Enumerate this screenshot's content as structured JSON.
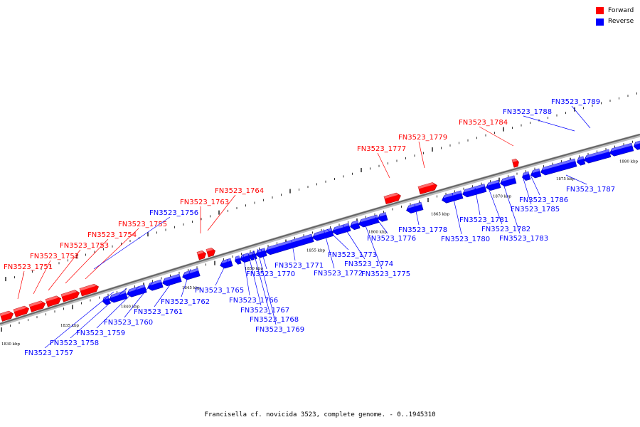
{
  "legend": {
    "forward_label": "Forward",
    "reverse_label": "Reverse",
    "forward_color": "#ff0000",
    "reverse_color": "#0000ff"
  },
  "caption": "Francisella cf. novicida 3523, complete genome. - 0..1945310",
  "scale_labels": [
    "1830 kbp",
    "1835 kbp",
    "1840 kbp",
    "1845 kbp",
    "1850 kbp",
    "1855 kbp",
    "1860 kbp",
    "1865 kbp",
    "1870 kbp",
    "1875 kbp",
    "1880 kbp"
  ],
  "genes": [
    {
      "id": "FN3523_1751",
      "strand": "forward"
    },
    {
      "id": "FN3523_1752",
      "strand": "forward"
    },
    {
      "id": "FN3523_1753",
      "strand": "forward"
    },
    {
      "id": "FN3523_1754",
      "strand": "forward"
    },
    {
      "id": "FN3523_1755",
      "strand": "forward"
    },
    {
      "id": "FN3523_1756",
      "strand": "reverse"
    },
    {
      "id": "FN3523_1757",
      "strand": "reverse"
    },
    {
      "id": "FN3523_1758",
      "strand": "reverse"
    },
    {
      "id": "FN3523_1759",
      "strand": "reverse"
    },
    {
      "id": "FN3523_1760",
      "strand": "reverse"
    },
    {
      "id": "FN3523_1761",
      "strand": "reverse"
    },
    {
      "id": "FN3523_1762",
      "strand": "reverse"
    },
    {
      "id": "FN3523_1763",
      "strand": "forward"
    },
    {
      "id": "FN3523_1764",
      "strand": "forward"
    },
    {
      "id": "FN3523_1765",
      "strand": "reverse"
    },
    {
      "id": "FN3523_1766",
      "strand": "reverse"
    },
    {
      "id": "FN3523_1767",
      "strand": "reverse"
    },
    {
      "id": "FN3523_1768",
      "strand": "reverse"
    },
    {
      "id": "FN3523_1769",
      "strand": "reverse"
    },
    {
      "id": "FN3523_1770",
      "strand": "reverse"
    },
    {
      "id": "FN3523_1771",
      "strand": "reverse"
    },
    {
      "id": "FN3523_1772",
      "strand": "reverse"
    },
    {
      "id": "FN3523_1773",
      "strand": "reverse"
    },
    {
      "id": "FN3523_1774",
      "strand": "reverse"
    },
    {
      "id": "FN3523_1775",
      "strand": "reverse"
    },
    {
      "id": "FN3523_1776",
      "strand": "reverse"
    },
    {
      "id": "FN3523_1777",
      "strand": "forward"
    },
    {
      "id": "FN3523_1778",
      "strand": "reverse"
    },
    {
      "id": "FN3523_1779",
      "strand": "forward"
    },
    {
      "id": "FN3523_1780",
      "strand": "reverse"
    },
    {
      "id": "FN3523_1781",
      "strand": "reverse"
    },
    {
      "id": "FN3523_1782",
      "strand": "reverse"
    },
    {
      "id": "FN3523_1783",
      "strand": "reverse"
    },
    {
      "id": "FN3523_1784",
      "strand": "forward"
    },
    {
      "id": "FN3523_1785",
      "strand": "reverse"
    },
    {
      "id": "FN3523_1786",
      "strand": "reverse"
    },
    {
      "id": "FN3523_1787",
      "strand": "reverse"
    },
    {
      "id": "FN3523_1788",
      "strand": "reverse"
    },
    {
      "id": "FN3523_1789",
      "strand": "reverse"
    }
  ]
}
